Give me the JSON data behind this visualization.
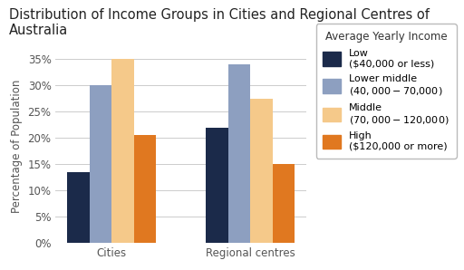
{
  "title": "Distribution of Income Groups in Cities and Regional Centres of Australia",
  "ylabel": "Percentage of Population",
  "categories": [
    "Cities",
    "Regional centres"
  ],
  "groups": [
    "Low\n($40,000 or less)",
    "Lower middle\n($40,000-$70,000)",
    "Middle\n($70,000-$120,000)",
    "High\n($120,000 or more)"
  ],
  "legend_title": "Average Yearly Income",
  "values": {
    "Cities": [
      13.5,
      30.0,
      35.0,
      20.5
    ],
    "Regional centres": [
      22.0,
      34.0,
      27.5,
      15.0
    ]
  },
  "colors": [
    "#1b2a4a",
    "#8d9fc0",
    "#f5c98a",
    "#e07820"
  ],
  "ylim": [
    0,
    37
  ],
  "yticks": [
    0,
    5,
    10,
    15,
    20,
    25,
    30,
    35
  ],
  "background_color": "#ffffff",
  "bar_width": 0.16,
  "title_fontsize": 10.5,
  "axis_fontsize": 8.5,
  "tick_fontsize": 8.5,
  "legend_fontsize": 8,
  "legend_title_fontsize": 8.5
}
